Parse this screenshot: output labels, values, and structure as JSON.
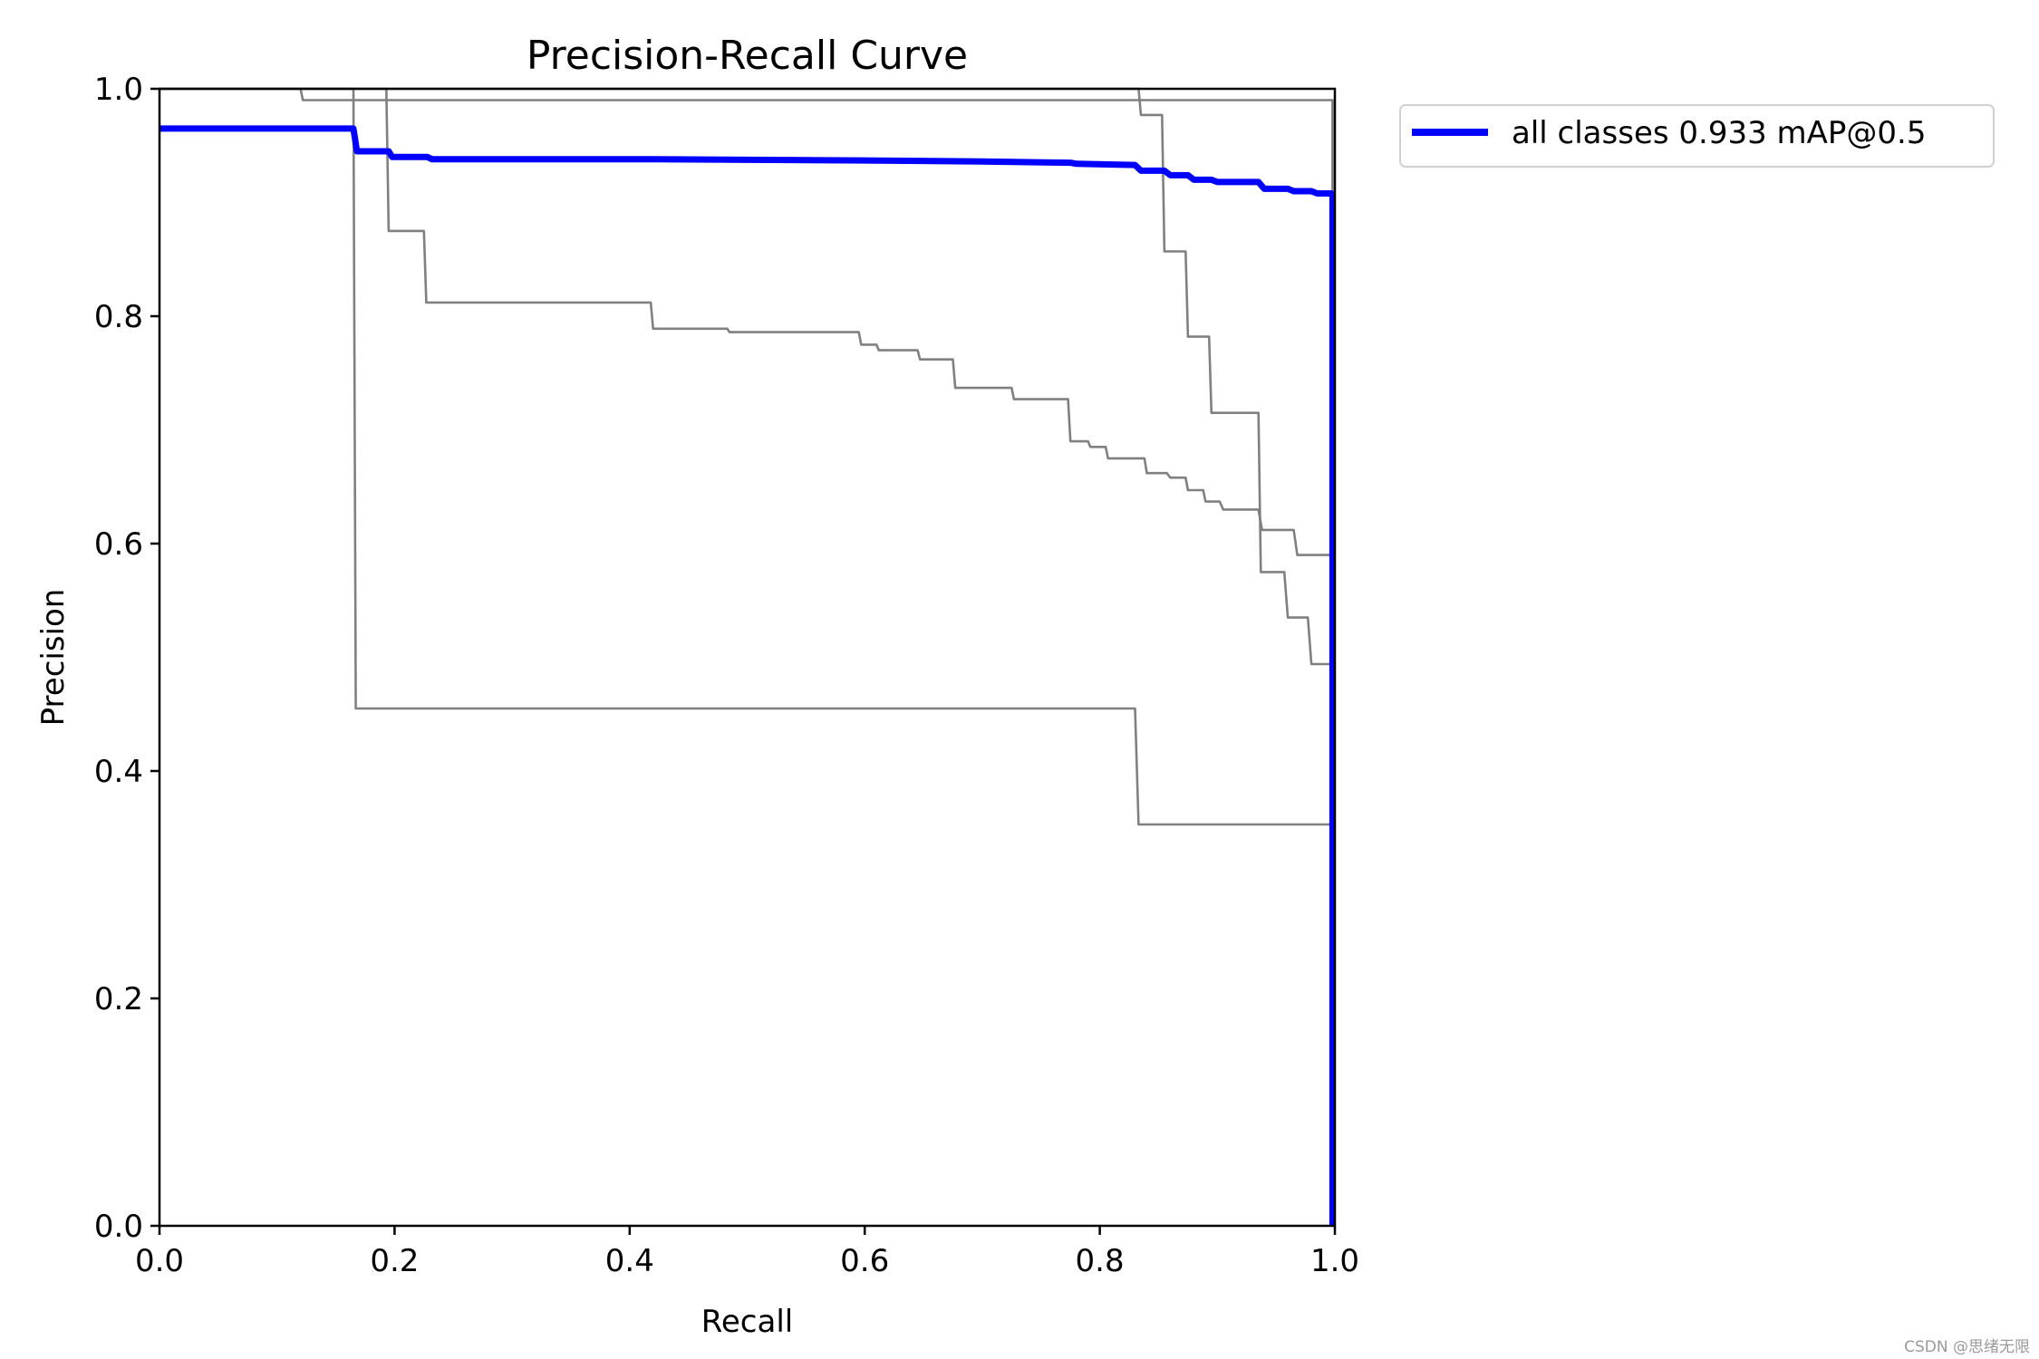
{
  "chart_data": {
    "type": "line",
    "title": "Precision-Recall Curve",
    "xlabel": "Recall",
    "ylabel": "Precision",
    "xlim": [
      0,
      1
    ],
    "ylim": [
      0,
      1
    ],
    "xticks": [
      "0.0",
      "0.2",
      "0.4",
      "0.6",
      "0.8",
      "1.0"
    ],
    "yticks": [
      "0.0",
      "0.2",
      "0.4",
      "0.6",
      "0.8",
      "1.0"
    ],
    "grid": false,
    "legend_position": "outside-top-right",
    "series": [
      {
        "name": "all classes 0.933 mAP@0.5",
        "color": "#0000ff",
        "style": "thick",
        "legend": true,
        "x": [
          0,
          0.165,
          0.168,
          0.195,
          0.198,
          0.228,
          0.232,
          0.42,
          0.6,
          0.7,
          0.775,
          0.78,
          0.83,
          0.835,
          0.855,
          0.86,
          0.875,
          0.88,
          0.895,
          0.9,
          0.935,
          0.94,
          0.96,
          0.965,
          0.98,
          0.985,
          0.997,
          0.998,
          0.998
        ],
        "y": [
          0.965,
          0.965,
          0.945,
          0.945,
          0.94,
          0.94,
          0.938,
          0.938,
          0.937,
          0.936,
          0.935,
          0.934,
          0.933,
          0.928,
          0.928,
          0.924,
          0.924,
          0.92,
          0.92,
          0.918,
          0.918,
          0.912,
          0.912,
          0.91,
          0.91,
          0.908,
          0.908,
          0.907,
          0.0
        ]
      },
      {
        "color": "#808080",
        "style": "thin",
        "legend": false,
        "x": [
          0,
          0.12,
          0.122,
          0.998,
          0.998
        ],
        "y": [
          1.0,
          1.0,
          0.99,
          0.99,
          0.0
        ]
      },
      {
        "color": "#808080",
        "style": "thin",
        "legend": false,
        "x": [
          0,
          0.165,
          0.167,
          0.83,
          0.833,
          0.998,
          0.998
        ],
        "y": [
          1.0,
          1.0,
          0.455,
          0.455,
          0.353,
          0.353,
          0.0
        ]
      },
      {
        "color": "#808080",
        "style": "thin",
        "legend": false,
        "x": [
          0,
          0.193,
          0.195,
          0.225,
          0.227,
          0.418,
          0.42,
          0.483,
          0.485,
          0.595,
          0.597,
          0.61,
          0.612,
          0.645,
          0.647,
          0.675,
          0.677,
          0.725,
          0.727,
          0.773,
          0.775,
          0.79,
          0.792,
          0.805,
          0.807,
          0.838,
          0.84,
          0.857,
          0.86,
          0.873,
          0.875,
          0.888,
          0.89,
          0.902,
          0.905,
          0.935,
          0.938,
          0.965,
          0.968,
          0.998,
          0.998
        ],
        "y": [
          1.0,
          1.0,
          0.875,
          0.875,
          0.812,
          0.812,
          0.789,
          0.789,
          0.786,
          0.786,
          0.775,
          0.775,
          0.77,
          0.77,
          0.762,
          0.762,
          0.737,
          0.737,
          0.727,
          0.727,
          0.69,
          0.69,
          0.685,
          0.685,
          0.675,
          0.675,
          0.662,
          0.662,
          0.658,
          0.658,
          0.647,
          0.647,
          0.637,
          0.637,
          0.63,
          0.63,
          0.612,
          0.612,
          0.59,
          0.59,
          0.0
        ]
      },
      {
        "color": "#808080",
        "style": "thin",
        "legend": false,
        "x": [
          0,
          0.833,
          0.835,
          0.853,
          0.855,
          0.873,
          0.875,
          0.893,
          0.895,
          0.935,
          0.937,
          0.957,
          0.96,
          0.977,
          0.98,
          0.998,
          0.998
        ],
        "y": [
          1.0,
          1.0,
          0.977,
          0.977,
          0.857,
          0.857,
          0.782,
          0.782,
          0.715,
          0.715,
          0.575,
          0.575,
          0.535,
          0.535,
          0.494,
          0.494,
          0.0
        ]
      }
    ]
  },
  "watermark": "CSDN @思绪无限"
}
